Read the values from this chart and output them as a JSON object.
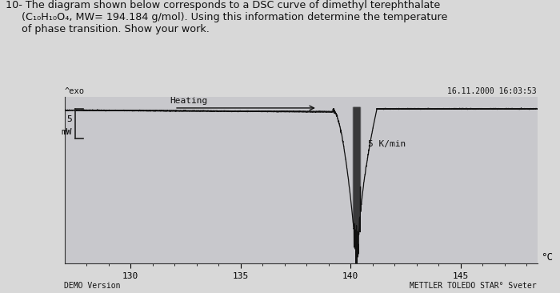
{
  "exo_label": "^exo",
  "date_label": "16.11.2000 16:03:53",
  "heating_label": "Heating",
  "rate_label": "5 K/min",
  "ylabel_num": "5",
  "ylabel_unit": "mW",
  "xlabel": "°C",
  "xticks": [
    130,
    135,
    140,
    145
  ],
  "xmin": 127.0,
  "xmax": 148.5,
  "ymin": -5.0,
  "ymax": 1.2,
  "demo_label": "DEMO Version",
  "brand_label": "METTLER TOLEDO STAR° Sveter",
  "bg_color": "#d8d8d8",
  "plot_bg": "#c8c8cc",
  "curve_color": "#111111",
  "peak_x": 140.3,
  "baseline_y": 0.7,
  "peak_depth": -4.6,
  "peak_onset": 139.2,
  "peak_recovery_end": 141.2
}
